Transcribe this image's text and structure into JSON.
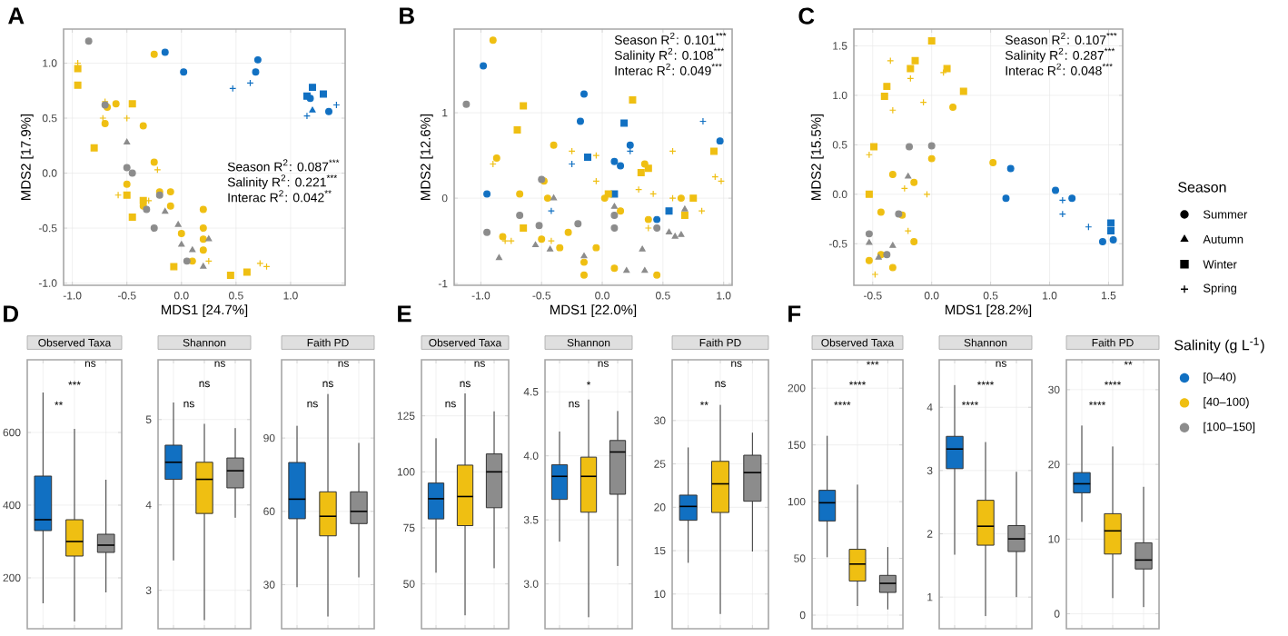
{
  "chart_data": [
    {
      "type": "scatter",
      "title": "A",
      "xlabel": "MDS1 [24.7%]",
      "ylabel": "MDS2 [17.9%]",
      "xlim": [
        -1.08,
        1.5
      ],
      "ylim": [
        -1.02,
        1.31
      ],
      "xticks": [
        {
          "value": -1,
          "label": "-1.0"
        },
        -0.5,
        {
          "value": 0,
          "label": "0.0"
        },
        0.5,
        {
          "value": 1,
          "label": "1.0"
        }
      ],
      "yticks": [
        {
          "value": -1,
          "label": "-1.0"
        },
        -0.5,
        {
          "value": 0,
          "label": "0.0"
        },
        0.5,
        {
          "value": 1,
          "label": "1.0"
        }
      ],
      "grid": true,
      "annotations": [
        "Season R$^{2}$: 0.087$^{***}$",
        "Salinity R$^{2}$: 0.221$^{***}$",
        "Interac R$^{2}$: 0.042$^{**}$"
      ],
      "series": [
        {
          "color": "#1170c2",
          "marker": "circle",
          "x": [
            -0.15,
            0.02,
            0.7,
            0.68,
            1.35,
            1.18
          ],
          "values": [
            1.1,
            0.92,
            1.03,
            0.92,
            0.56,
            0.68
          ]
        },
        {
          "color": "#1170c2",
          "marker": "triangle",
          "x": [
            1.2
          ],
          "values": [
            0.57
          ]
        },
        {
          "color": "#1170c2",
          "marker": "square",
          "x": [
            1.2,
            1.3,
            1.15
          ],
          "values": [
            0.78,
            0.72,
            0.7
          ]
        },
        {
          "color": "#1170c2",
          "marker": "cross",
          "x": [
            0.47,
            0.63,
            1.15,
            1.42
          ],
          "values": [
            0.77,
            0.82,
            0.52,
            0.62
          ]
        },
        {
          "color": "#efbf12",
          "marker": "circle",
          "x": [
            -0.25,
            -0.68,
            -0.6,
            -0.7,
            -0.35,
            -0.25,
            -0.5,
            -0.2,
            -0.1,
            -0.35,
            -0.1,
            0.2,
            0.2,
            0.2,
            0,
            0.2,
            0.1
          ],
          "values": [
            1.08,
            0.6,
            0.63,
            0.45,
            0.43,
            0.1,
            -0.1,
            -0.17,
            -0.17,
            -0.3,
            -0.3,
            -0.33,
            -0.5,
            -0.6,
            -0.55,
            -0.7,
            -0.8
          ]
        },
        {
          "color": "#efbf12",
          "marker": "square",
          "x": [
            -0.95,
            -0.95,
            -0.45,
            -0.8,
            -0.5,
            -0.45,
            -0.35,
            -0.07,
            0.45,
            0.6
          ],
          "values": [
            0.95,
            0.8,
            0.63,
            0.23,
            -0.2,
            -0.4,
            -0.25,
            -0.85,
            -0.93,
            -0.9
          ]
        },
        {
          "color": "#efbf12",
          "marker": "cross",
          "x": [
            -0.95,
            -0.7,
            -0.72,
            -0.5,
            -0.22,
            -0.58,
            -0.3,
            0.25,
            0.72,
            0.78
          ],
          "values": [
            1.0,
            0.65,
            0.5,
            0.5,
            0.03,
            -0.2,
            -0.25,
            -0.8,
            -0.82,
            -0.85
          ]
        },
        {
          "color": "#8c8c8c",
          "marker": "circle",
          "x": [
            -0.85,
            -0.7,
            -0.5,
            -0.45,
            -0.32,
            -0.2,
            -0.25,
            0.05
          ],
          "values": [
            1.2,
            0.62,
            0.05,
            0.0,
            -0.33,
            -0.2,
            -0.5,
            -0.8
          ]
        },
        {
          "color": "#8c8c8c",
          "marker": "triangle",
          "x": [
            -0.5,
            -0.15,
            -0.03,
            0,
            0.1,
            0.2,
            0.25
          ],
          "values": [
            0.28,
            -0.35,
            -0.47,
            -0.65,
            -0.7,
            -0.85,
            -0.6
          ]
        }
      ]
    },
    {
      "type": "scatter",
      "title": "B",
      "xlabel": "MDS1 [22.0%]",
      "ylabel": "MDS2 [12.6%]",
      "xlim": [
        -1.22,
        1.07
      ],
      "ylim": [
        -1.02,
        1.98
      ],
      "xticks": [
        {
          "value": -1,
          "label": "-1.0"
        },
        -0.5,
        {
          "value": 0,
          "label": "0.0"
        },
        0.5,
        {
          "value": 1,
          "label": "1.0"
        }
      ],
      "yticks": [
        -1,
        0,
        1
      ],
      "grid": true,
      "annotations": [
        "Season R$^{2}$: 0.101$^{***}$",
        "Salinity R$^{2}$: 0.108$^{***}$",
        "Interac R$^{2}$: 0.049$^{***}$"
      ],
      "series": [
        {
          "color": "#1170c2",
          "marker": "circle",
          "x": [
            -0.98,
            -0.15,
            -0.18,
            0.23,
            0.1,
            0.15,
            -0.95,
            0.97,
            0.45
          ],
          "values": [
            1.55,
            1.22,
            0.9,
            0.62,
            0.43,
            0.38,
            0.05,
            0.67,
            -0.25
          ]
        },
        {
          "color": "#1170c2",
          "marker": "square",
          "x": [
            0.18,
            -0.12,
            0.55,
            0.1
          ],
          "values": [
            0.88,
            0.48,
            -0.15,
            0.05
          ]
        },
        {
          "color": "#1170c2",
          "marker": "cross",
          "x": [
            0.83,
            -0.25,
            -0.42,
            0.23
          ],
          "values": [
            0.9,
            0.4,
            -0.15,
            0.55
          ]
        },
        {
          "color": "#efbf12",
          "marker": "circle",
          "x": [
            -0.9,
            -0.87,
            -0.68,
            -0.4,
            -0.48,
            -0.45,
            -0.82,
            -0.5,
            -0.35,
            -0.28,
            -0.15,
            -0.15,
            -0.05,
            0.1,
            0.15,
            0.35,
            0.45,
            0.38,
            0.02,
            0.65
          ],
          "values": [
            1.85,
            0.47,
            0.05,
            0.62,
            0.2,
            0.0,
            -0.45,
            -0.48,
            -0.58,
            -0.4,
            -0.75,
            -0.9,
            -0.58,
            -0.82,
            -0.15,
            0.4,
            -0.9,
            -0.25,
            0.0,
            0.0
          ]
        },
        {
          "color": "#efbf12",
          "marker": "square",
          "x": [
            -0.65,
            -0.7,
            0.25,
            0.32,
            0.38,
            0.92,
            0.05,
            -0.65,
            0.68,
            0.75
          ],
          "values": [
            1.08,
            0.8,
            1.15,
            0.3,
            0.35,
            0.55,
            0.05,
            -0.35,
            -0.2,
            0.0
          ]
        },
        {
          "color": "#efbf12",
          "marker": "cross",
          "x": [
            -0.9,
            -0.25,
            -0.05,
            -0.05,
            0.3,
            0.42,
            0.58,
            0.93,
            0.98,
            0.82,
            0.38,
            -0.8,
            -0.75,
            -0.42,
            0.58
          ],
          "values": [
            0.4,
            0.55,
            0.5,
            0.2,
            0.1,
            0.05,
            0.0,
            0.25,
            0.2,
            -0.15,
            -0.35,
            -0.5,
            -0.5,
            -0.5,
            0.55
          ]
        },
        {
          "color": "#8c8c8c",
          "marker": "circle",
          "x": [
            -1.12,
            -0.5,
            -0.68,
            -0.52,
            -0.95,
            -0.2,
            0.1,
            0.1,
            0.45
          ],
          "values": [
            1.1,
            0.22,
            -0.2,
            -0.32,
            -0.4,
            -0.3,
            -0.2,
            -0.35,
            -0.35
          ]
        },
        {
          "color": "#8c8c8c",
          "marker": "triangle",
          "x": [
            -0.4,
            -0.85,
            -0.55,
            -0.43,
            -0.15,
            0.1,
            0.33,
            0.35,
            0.2,
            0.55,
            0.6,
            0.65,
            0.68
          ],
          "values": [
            0.0,
            -0.7,
            -0.55,
            -0.6,
            -0.68,
            -0.1,
            -0.6,
            -0.85,
            -0.85,
            -0.4,
            -0.45,
            -0.43,
            -0.13
          ]
        }
      ]
    },
    {
      "type": "scatter",
      "title": "C",
      "xlabel": "MDS1 [28.2%]",
      "ylabel": "MDS2 [15.5%]",
      "xlim": [
        -0.66,
        1.62
      ],
      "ylim": [
        -0.92,
        1.67
      ],
      "xticks": [
        -0.5,
        {
          "value": 0,
          "label": "0.0"
        },
        0.5,
        {
          "value": 1,
          "label": "1.0"
        },
        1.5
      ],
      "yticks": [
        -0.5,
        {
          "value": 0,
          "label": "0.0"
        },
        0.5,
        {
          "value": 1,
          "label": "1.0"
        },
        1.5
      ],
      "grid": true,
      "annotations": [
        "Season R$^{2}$: 0.107$^{***}$",
        "Salinity R$^{2}$: 0.287$^{***}$",
        "Interac R$^{2}$: 0.048$^{***}$"
      ],
      "series": [
        {
          "color": "#1170c2",
          "marker": "circle",
          "x": [
            0.67,
            0.63,
            1.05,
            1.19,
            1.54,
            1.45
          ],
          "values": [
            0.26,
            -0.04,
            0.04,
            -0.04,
            -0.46,
            -0.48
          ]
        },
        {
          "color": "#1170c2",
          "marker": "square",
          "x": [
            1.52,
            1.52
          ],
          "values": [
            -0.29,
            -0.37
          ]
        },
        {
          "color": "#1170c2",
          "marker": "cross",
          "x": [
            1.11,
            1.11,
            1.33
          ],
          "values": [
            -0.06,
            -0.2,
            -0.33
          ]
        },
        {
          "color": "#efbf12",
          "marker": "circle",
          "x": [
            0.18,
            0,
            0.52,
            -0.33,
            -0.15,
            -0.15,
            -0.43,
            -0.43,
            -0.33,
            -0.53,
            -0.25
          ],
          "values": [
            0.88,
            0.36,
            0.32,
            0.2,
            0.12,
            -0.48,
            -0.18,
            -0.61,
            -0.74,
            -0.67,
            -0.21
          ]
        },
        {
          "color": "#efbf12",
          "marker": "square",
          "x": [
            0,
            -0.14,
            -0.18,
            0.13,
            0.27,
            -0.38,
            -0.4,
            -0.49,
            -0.53
          ],
          "values": [
            1.55,
            1.35,
            1.27,
            1.27,
            1.04,
            1.09,
            0.99,
            0.48,
            0
          ]
        },
        {
          "color": "#efbf12",
          "marker": "cross",
          "x": [
            -0.35,
            -0.18,
            0.1,
            -0.07,
            -0.33,
            -0.53,
            -0.04,
            -0.23,
            -0.2,
            -0.48
          ],
          "values": [
            1.35,
            1.17,
            1.23,
            0.93,
            0.85,
            0.4,
            0,
            0.06,
            -0.37,
            -0.81
          ]
        },
        {
          "color": "#8c8c8c",
          "marker": "circle",
          "x": [
            0,
            -0.19,
            -0.28,
            -0.53,
            -0.38
          ],
          "values": [
            0.49,
            0.48,
            -0.2,
            -0.4,
            -0.61
          ]
        },
        {
          "color": "#8c8c8c",
          "marker": "triangle",
          "x": [
            -0.2,
            -0.53,
            -0.33,
            -0.45
          ],
          "values": [
            0.18,
            -0.49,
            -0.52,
            -0.64
          ]
        }
      ]
    },
    {
      "type": "box",
      "title": "Observed Taxa",
      "subtitle": "D",
      "categories": [
        null,
        null,
        null
      ],
      "tick_labels": "y",
      "grid": true,
      "ylim": [
        60,
        800
      ],
      "yticks": [
        200,
        400,
        600
      ],
      "colors": [
        "#1170c2",
        "#efbf12",
        "#8c8c8c"
      ],
      "annotations": [
        "ns",
        "***",
        "**"
      ],
      "boxes": [
        {
          "low": 130,
          "q1": 330,
          "median": 360,
          "q3": 480,
          "high": 710
        },
        {
          "low": 80,
          "q1": 260,
          "median": 300,
          "q3": 360,
          "high": 610
        },
        {
          "low": 160,
          "q1": 270,
          "median": 290,
          "q3": 320,
          "high": 470
        }
      ]
    },
    {
      "type": "box",
      "title": "Shannon",
      "categories": [
        null,
        null,
        null
      ],
      "tick_labels": "y",
      "grid": true,
      "ylim": [
        2.55,
        5.7
      ],
      "yticks": [
        3,
        4,
        5
      ],
      "colors": [
        "#1170c2",
        "#efbf12",
        "#8c8c8c"
      ],
      "annotations": [
        "ns",
        "ns",
        "ns"
      ],
      "boxes": [
        {
          "low": 3.35,
          "q1": 4.3,
          "median": 4.5,
          "q3": 4.7,
          "high": 5.2
        },
        {
          "low": 2.65,
          "q1": 3.9,
          "median": 4.3,
          "q3": 4.5,
          "high": 4.95
        },
        {
          "low": 3.85,
          "q1": 4.2,
          "median": 4.4,
          "q3": 4.55,
          "high": 4.9
        }
      ]
    },
    {
      "type": "box",
      "title": "Faith PD",
      "categories": [
        null,
        null,
        null
      ],
      "tick_labels": "y",
      "grid": true,
      "ylim": [
        12,
        122
      ],
      "yticks": [
        30,
        60,
        90
      ],
      "colors": [
        "#1170c2",
        "#efbf12",
        "#8c8c8c"
      ],
      "annotations": [
        "ns",
        "ns",
        "ns"
      ],
      "boxes": [
        {
          "low": 29,
          "q1": 57,
          "median": 65,
          "q3": 80,
          "high": 95
        },
        {
          "low": 17,
          "q1": 50,
          "median": 58,
          "q3": 68,
          "high": 108
        },
        {
          "low": 33,
          "q1": 55,
          "median": 60,
          "q3": 68,
          "high": 88
        }
      ]
    },
    {
      "type": "box",
      "title": "Observed Taxa",
      "subtitle": "E",
      "categories": [
        null,
        null,
        null
      ],
      "tick_labels": "y",
      "grid": true,
      "ylim": [
        30,
        150
      ],
      "yticks": [
        50,
        75,
        100,
        125
      ],
      "colors": [
        "#1170c2",
        "#efbf12",
        "#8c8c8c"
      ],
      "annotations": [
        "ns",
        "ns",
        "ns"
      ],
      "boxes": [
        {
          "low": 55,
          "q1": 79,
          "median": 88,
          "q3": 95,
          "high": 115
        },
        {
          "low": 36,
          "q1": 76,
          "median": 89,
          "q3": 103,
          "high": 135
        },
        {
          "low": 57,
          "q1": 84,
          "median": 100,
          "q3": 108,
          "high": 127
        }
      ]
    },
    {
      "type": "box",
      "title": "Shannon",
      "categories": [
        null,
        null,
        null
      ],
      "tick_labels": "y",
      "grid": true,
      "ylim": [
        2.65,
        4.75
      ],
      "yticks": [
        {
          "value": 3,
          "label": "3.0"
        },
        3.5,
        {
          "value": 4,
          "label": "4.0"
        },
        4.5
      ],
      "colors": [
        "#1170c2",
        "#efbf12",
        "#8c8c8c"
      ],
      "annotations": [
        "ns",
        "*",
        "ns"
      ],
      "boxes": [
        {
          "low": 3.33,
          "q1": 3.66,
          "median": 3.84,
          "q3": 3.93,
          "high": 4.19
        },
        {
          "low": 2.74,
          "q1": 3.56,
          "median": 3.84,
          "q3": 3.99,
          "high": 4.44
        },
        {
          "low": 3.14,
          "q1": 3.7,
          "median": 4.03,
          "q3": 4.12,
          "high": 4.35
        }
      ]
    },
    {
      "type": "box",
      "title": "Faith PD",
      "categories": [
        null,
        null,
        null
      ],
      "tick_labels": "y",
      "grid": true,
      "ylim": [
        6,
        37
      ],
      "yticks": [
        10,
        15,
        20,
        25,
        30
      ],
      "colors": [
        "#1170c2",
        "#efbf12",
        "#8c8c8c"
      ],
      "annotations": [
        "ns",
        "ns",
        "**"
      ],
      "boxes": [
        {
          "low": 13.6,
          "q1": 18.5,
          "median": 20.1,
          "q3": 21.4,
          "high": 26.9
        },
        {
          "low": 7.7,
          "q1": 19.4,
          "median": 22.7,
          "q3": 25.3,
          "high": 31.8
        },
        {
          "low": 14.9,
          "q1": 20.7,
          "median": 24,
          "q3": 26,
          "high": 28.6
        }
      ]
    },
    {
      "type": "box",
      "title": "Observed Taxa",
      "subtitle": "F",
      "categories": [
        null,
        null,
        null
      ],
      "tick_labels": "y",
      "grid": true,
      "ylim": [
        -12,
        225
      ],
      "yticks": [
        0,
        50,
        100,
        150,
        200
      ],
      "colors": [
        "#1170c2",
        "#efbf12",
        "#8c8c8c"
      ],
      "annotations": [
        "***",
        "****",
        "****"
      ],
      "boxes": [
        {
          "low": 51,
          "q1": 83,
          "median": 99,
          "q3": 110,
          "high": 158
        },
        {
          "low": 8,
          "q1": 30,
          "median": 45,
          "q3": 58,
          "high": 115
        },
        {
          "low": 5,
          "q1": 20,
          "median": 28,
          "q3": 35,
          "high": 60
        }
      ]
    },
    {
      "type": "box",
      "title": "Shannon",
      "categories": [
        null,
        null,
        null
      ],
      "tick_labels": "y",
      "grid": true,
      "ylim": [
        0.5,
        4.75
      ],
      "yticks": [
        1,
        2,
        3,
        4
      ],
      "colors": [
        "#1170c2",
        "#efbf12",
        "#8c8c8c"
      ],
      "annotations": [
        "ns",
        "****",
        "****"
      ],
      "boxes": [
        {
          "low": 1.67,
          "q1": 3.03,
          "median": 3.34,
          "q3": 3.54,
          "high": 4.35
        },
        {
          "low": 0.7,
          "q1": 1.82,
          "median": 2.12,
          "q3": 2.53,
          "high": 3.45
        },
        {
          "low": 1.0,
          "q1": 1.72,
          "median": 1.92,
          "q3": 2.13,
          "high": 2.98
        }
      ]
    },
    {
      "type": "box",
      "title": "Faith PD",
      "categories": [
        null,
        null,
        null
      ],
      "tick_labels": "y",
      "grid": true,
      "ylim": [
        -2,
        34
      ],
      "yticks": [
        0,
        10,
        20,
        30
      ],
      "colors": [
        "#1170c2",
        "#efbf12",
        "#8c8c8c"
      ],
      "annotations": [
        "**",
        "****",
        "****"
      ],
      "boxes": [
        {
          "low": 12.3,
          "q1": 16.2,
          "median": 17.4,
          "q3": 18.9,
          "high": 25.2
        },
        {
          "low": 2.1,
          "q1": 8.0,
          "median": 11.1,
          "q3": 13.4,
          "high": 22.4
        },
        {
          "low": 0.9,
          "q1": 6.0,
          "median": 7.2,
          "q3": 9.5,
          "high": 17.0
        }
      ]
    },
    {
      "type": "other",
      "title": "Season",
      "annotations": [
        "Summer",
        "Autumn",
        "Winter",
        "Spring"
      ],
      "legend_title": "Salinity (g L$^{-1}$)",
      "categories": [
        "[0–40)",
        "[40–100)",
        "[100–150]"
      ],
      "colors": [
        "#1170c2",
        "#efbf12",
        "#8c8c8c"
      ]
    }
  ]
}
